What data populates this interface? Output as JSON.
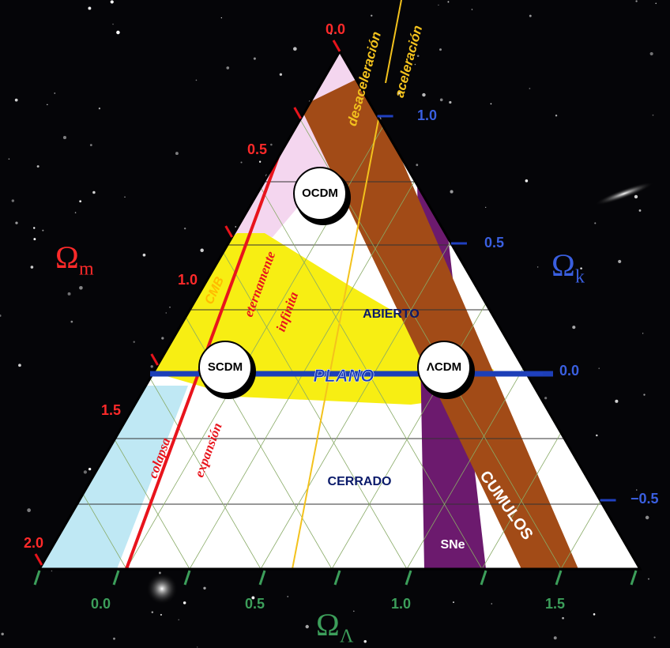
{
  "axes": {
    "omega_m": {
      "symbol": "Ω",
      "subscript": "m",
      "ticks": [
        "0.0",
        "0.5",
        "1.0",
        "1.5",
        "2.0"
      ]
    },
    "omega_k": {
      "symbol": "Ω",
      "subscript": "k",
      "ticks": [
        "1.0",
        "0.5",
        "0.0",
        "−0.5"
      ]
    },
    "omega_lambda": {
      "symbol": "Ω",
      "subscript": "Λ",
      "ticks": [
        "0.0",
        "0.5",
        "1.0",
        "1.5"
      ]
    }
  },
  "models": [
    "OCDM",
    "SCDM",
    "ΛCDM"
  ],
  "regions": {
    "flat": "PLANO",
    "open": "ABIERTO",
    "closed": "CERRADO",
    "clusters": "CUMULOS",
    "supernovae": "SNe",
    "cmb": "CMB"
  },
  "boundaries": {
    "deceleration": "desaceleración",
    "acceleration": "aceleración",
    "expansion": "expansión",
    "collapse": "colapsa",
    "eternal": "eternamente",
    "infinite": "infinita"
  }
}
